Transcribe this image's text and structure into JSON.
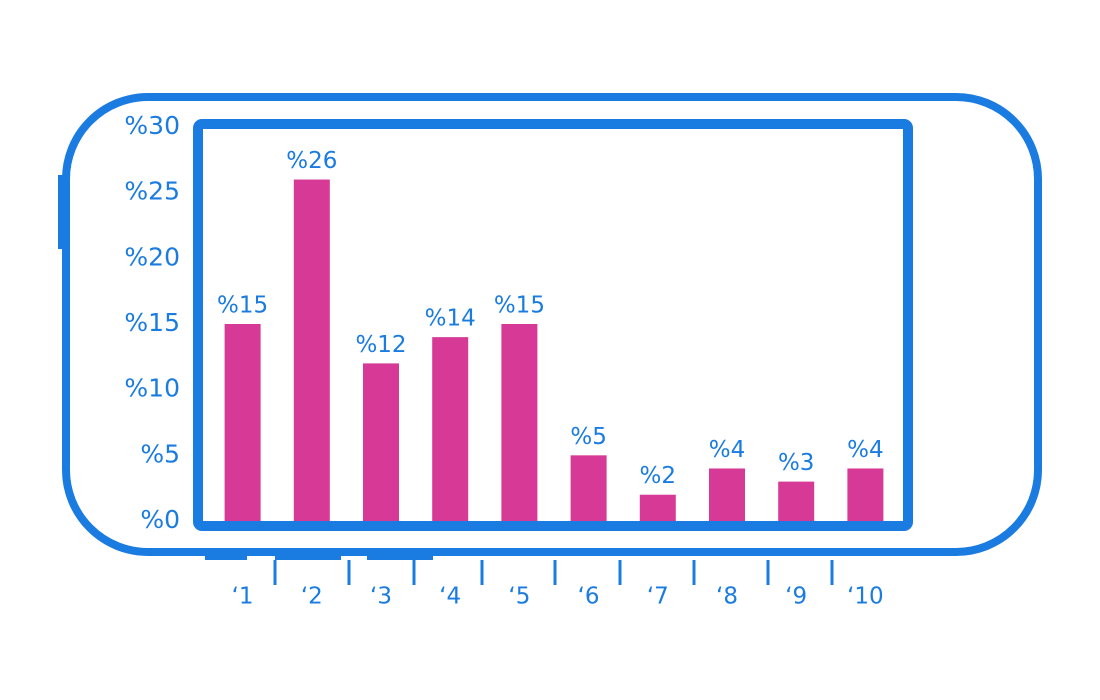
{
  "chart_data": {
    "type": "bar",
    "categories": [
      "‘1",
      "‘2",
      "‘3",
      "‘4",
      "‘5",
      "‘6",
      "‘7",
      "‘8",
      "‘9",
      "‘10"
    ],
    "values": [
      15,
      26,
      12,
      14,
      15,
      5,
      2,
      4,
      3,
      4
    ],
    "value_labels": [
      "%15",
      "%26",
      "%12",
      "%14",
      "%15",
      "%5",
      "%2",
      "%4",
      "%3",
      "%4"
    ],
    "color": "#d63a96",
    "axis_color": "#1a7be0",
    "ylim": [
      0,
      30
    ],
    "yticks": [
      {
        "value": 0,
        "label": "%0"
      },
      {
        "value": 5,
        "label": "%5"
      },
      {
        "value": 10,
        "label": "%10"
      },
      {
        "value": 15,
        "label": "%15"
      },
      {
        "value": 20,
        "label": "%20"
      },
      {
        "value": 25,
        "label": "%25"
      },
      {
        "value": 30,
        "label": "%30"
      }
    ],
    "grid": false
  }
}
